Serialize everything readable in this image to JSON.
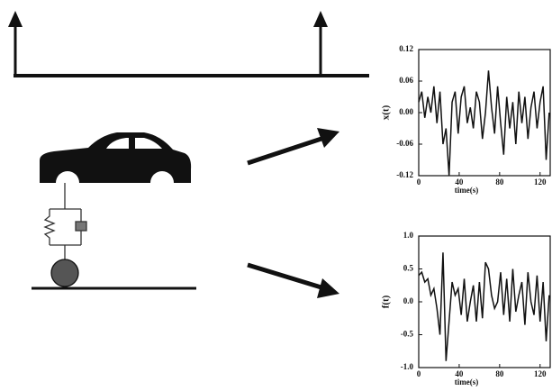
{
  "chart_data": [
    {
      "type": "line",
      "ylabel": "x(t)",
      "xlabel": "time(s)",
      "x": [
        0,
        3,
        6,
        9,
        12,
        15,
        18,
        21,
        24,
        27,
        30,
        33,
        36,
        39,
        42,
        45,
        48,
        51,
        54,
        57,
        60,
        63,
        66,
        69,
        72,
        75,
        78,
        81,
        84,
        87,
        90,
        93,
        96,
        99,
        102,
        105,
        108,
        111,
        114,
        117,
        120,
        123,
        126,
        129
      ],
      "values": [
        0.02,
        0.04,
        -0.01,
        0.03,
        0.0,
        0.05,
        -0.02,
        0.04,
        -0.06,
        -0.03,
        -0.12,
        0.02,
        0.04,
        -0.04,
        0.03,
        0.05,
        -0.02,
        0.01,
        -0.03,
        0.04,
        0.02,
        -0.05,
        0.0,
        0.08,
        0.01,
        -0.04,
        0.05,
        -0.02,
        -0.08,
        0.03,
        -0.03,
        0.02,
        -0.06,
        0.04,
        -0.02,
        0.03,
        -0.05,
        0.01,
        0.04,
        -0.03,
        0.02,
        0.05,
        -0.09,
        0.0
      ],
      "color": "#111111",
      "xlim": [
        0,
        130
      ],
      "ylim": [
        -0.12,
        0.12
      ],
      "xticks": [
        0,
        40,
        80,
        120
      ],
      "yticks": [
        0.12,
        0.06,
        {
          "value": 0,
          "label": "0.00"
        },
        -0.06,
        -0.12
      ]
    },
    {
      "type": "line",
      "ylabel": "f(t)",
      "xlabel": "time(s)",
      "x": [
        0,
        3,
        6,
        9,
        12,
        15,
        18,
        21,
        24,
        27,
        30,
        33,
        36,
        39,
        42,
        45,
        48,
        51,
        54,
        57,
        60,
        63,
        66,
        69,
        72,
        75,
        78,
        81,
        84,
        87,
        90,
        93,
        96,
        99,
        102,
        105,
        108,
        111,
        114,
        117,
        120,
        123,
        126,
        129
      ],
      "values": [
        0.4,
        0.45,
        0.3,
        0.35,
        0.1,
        0.2,
        -0.1,
        -0.5,
        0.75,
        -0.9,
        -0.3,
        0.3,
        0.1,
        0.2,
        -0.2,
        0.35,
        -0.3,
        0.0,
        0.25,
        -0.3,
        0.3,
        -0.25,
        0.6,
        0.5,
        0.1,
        -0.1,
        0.0,
        0.45,
        -0.2,
        0.35,
        -0.3,
        0.5,
        -0.15,
        0.1,
        0.3,
        -0.35,
        0.45,
        0.0,
        -0.2,
        0.4,
        -0.3,
        0.3,
        -0.6,
        0.1
      ],
      "color": "#111111",
      "xlim": [
        0,
        130
      ],
      "ylim": [
        -1,
        1
      ],
      "xticks": [
        0,
        40,
        80,
        120
      ],
      "yticks": [
        {
          "value": 1,
          "label": "1.0"
        },
        0.5,
        {
          "value": 0,
          "label": "0.0"
        },
        -0.5,
        {
          "value": -1,
          "label": "-1.0"
        }
      ]
    }
  ]
}
